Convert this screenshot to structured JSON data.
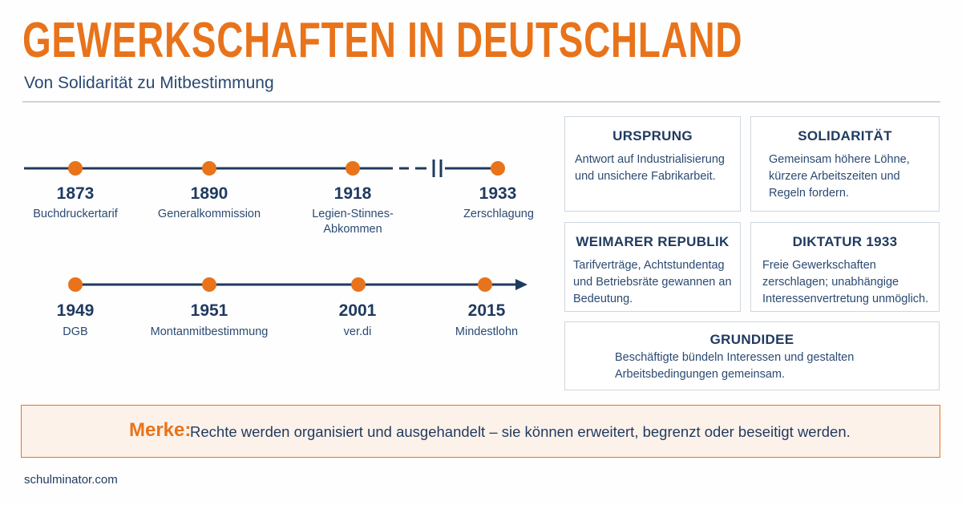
{
  "header": {
    "title": "GEWERKSCHAFTEN IN DEUTSCHLAND",
    "subtitle": "Von Solidarität zu Mitbestimmung"
  },
  "timeline": {
    "row1": [
      {
        "year": "1873",
        "label": "Buchdruckertarif"
      },
      {
        "year": "1890",
        "label": "Generalkommission"
      },
      {
        "year": "1918",
        "label": "Legien-Stinnes-\nAbkommen"
      },
      {
        "year": "1933",
        "label": "Zerschlagung"
      }
    ],
    "row2": [
      {
        "year": "1949",
        "label": "DGB"
      },
      {
        "year": "1951",
        "label": "Montanmitbestimmung"
      },
      {
        "year": "2001",
        "label": "ver.di"
      },
      {
        "year": "2015",
        "label": "Mindestlohn"
      }
    ]
  },
  "cards": {
    "ursprung": {
      "title": "URSPRUNG",
      "text": "Antwort auf Industrialisierung und unsichere Fabrikarbeit."
    },
    "solidaritaet": {
      "title": "SOLIDARITÄT",
      "text": "Gemeinsam höhere Löhne, kürzere Arbeitszeiten und Regeln fordern."
    },
    "weimar": {
      "title": "WEIMARER REPUBLIK",
      "text": "Tarifverträge, Achtstundentag und Betriebsräte gewannen an Bedeutung."
    },
    "diktatur": {
      "title": "DIKTATUR 1933",
      "text": "Freie Gewerkschaften zerschlagen; unabhängige Interessenvertretung unmöglich."
    },
    "grundidee": {
      "title": "GRUNDIDEE",
      "text": "Beschäftigte bündeln Interessen und gestalten Arbeitsbedingungen gemeinsam."
    }
  },
  "merke": {
    "label": "Merke:",
    "text": "Rechte werden organisiert und ausgehandelt –  sie können erweitert, begrenzt oder beseitigt werden."
  },
  "footer": {
    "source": "schulminator.com"
  },
  "colors": {
    "accent": "#e8731a",
    "navy": "#1f3a5f",
    "border": "#cfd6de"
  }
}
